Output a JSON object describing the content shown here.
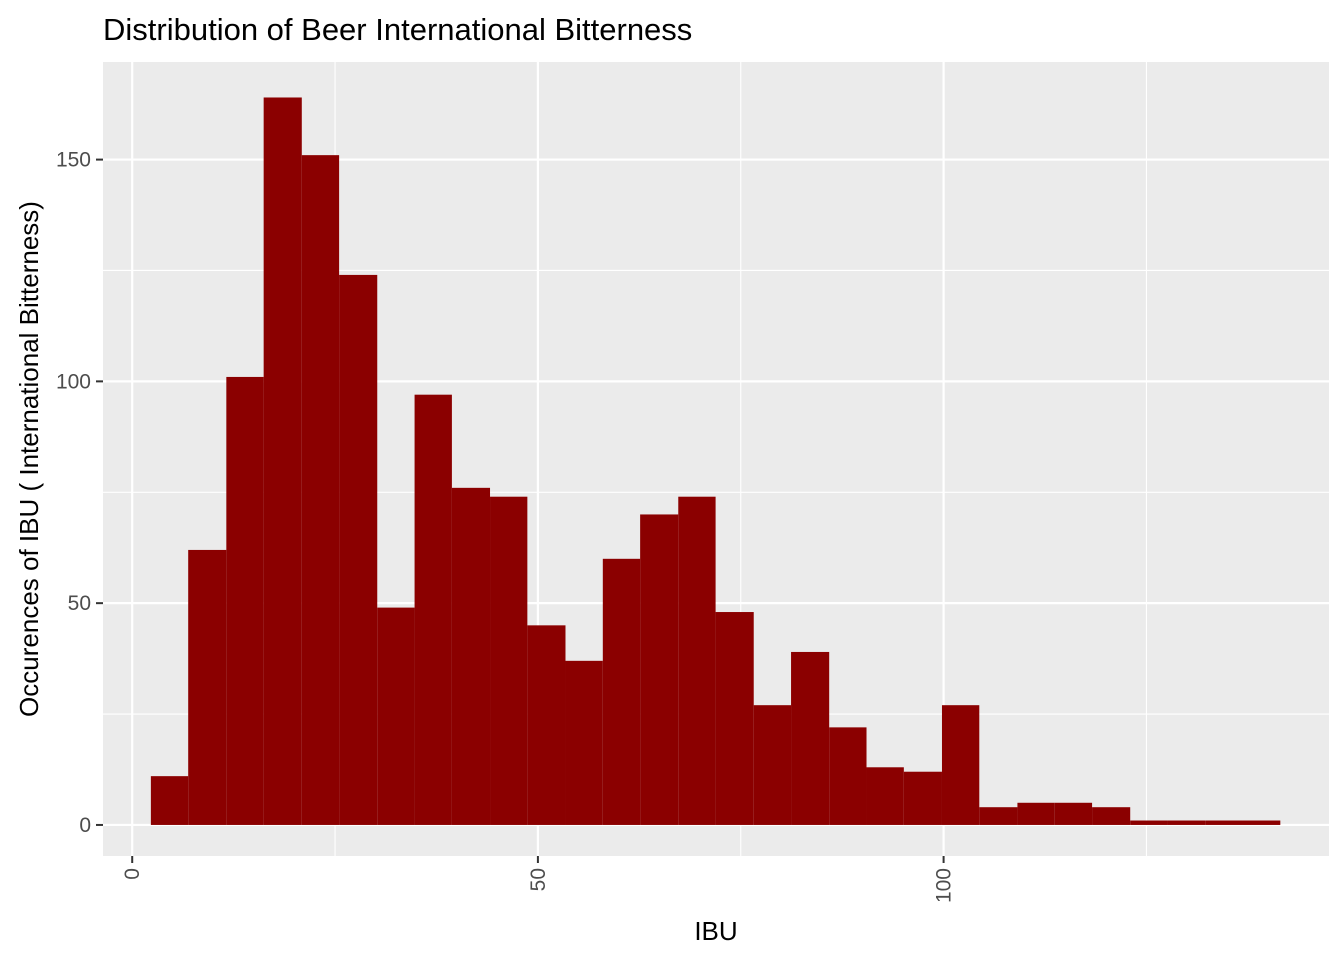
{
  "chart_data": {
    "type": "bar",
    "title": "Distribution of Beer International Bitterness",
    "xlabel": "IBU",
    "ylabel": "Occurences of IBU ( International Bitterness)",
    "xlim": [
      -3.6,
      147.5
    ],
    "ylim": [
      -7,
      172
    ],
    "x_ticks": [
      0,
      50,
      100
    ],
    "y_ticks": [
      0,
      50,
      100,
      150
    ],
    "grid": true,
    "legend": "none",
    "colors": {
      "bar_fill": "#8B0000",
      "panel_background": "#EBEBEB",
      "grid_line": "#FFFFFF",
      "tick_mark": "#333333",
      "tick_text": "#4D4D4D"
    },
    "bins": [
      {
        "x0": 2.3,
        "x1": 6.9,
        "count": 11
      },
      {
        "x0": 6.9,
        "x1": 11.6,
        "count": 62
      },
      {
        "x0": 11.6,
        "x1": 16.2,
        "count": 101
      },
      {
        "x0": 16.2,
        "x1": 20.9,
        "count": 164
      },
      {
        "x0": 20.9,
        "x1": 25.5,
        "count": 151
      },
      {
        "x0": 25.5,
        "x1": 30.2,
        "count": 124
      },
      {
        "x0": 30.2,
        "x1": 34.8,
        "count": 49
      },
      {
        "x0": 34.8,
        "x1": 39.4,
        "count": 97
      },
      {
        "x0": 39.4,
        "x1": 44.1,
        "count": 76
      },
      {
        "x0": 44.1,
        "x1": 48.7,
        "count": 74
      },
      {
        "x0": 48.7,
        "x1": 53.4,
        "count": 45
      },
      {
        "x0": 53.4,
        "x1": 58.0,
        "count": 37
      },
      {
        "x0": 58.0,
        "x1": 62.6,
        "count": 60
      },
      {
        "x0": 62.6,
        "x1": 67.3,
        "count": 70
      },
      {
        "x0": 67.3,
        "x1": 71.9,
        "count": 74
      },
      {
        "x0": 71.9,
        "x1": 76.6,
        "count": 48
      },
      {
        "x0": 76.6,
        "x1": 81.2,
        "count": 27
      },
      {
        "x0": 81.2,
        "x1": 85.9,
        "count": 39
      },
      {
        "x0": 85.9,
        "x1": 90.5,
        "count": 22
      },
      {
        "x0": 90.5,
        "x1": 95.1,
        "count": 13
      },
      {
        "x0": 95.1,
        "x1": 99.8,
        "count": 12
      },
      {
        "x0": 99.8,
        "x1": 104.4,
        "count": 27
      },
      {
        "x0": 104.4,
        "x1": 109.1,
        "count": 4
      },
      {
        "x0": 109.1,
        "x1": 113.7,
        "count": 5
      },
      {
        "x0": 113.7,
        "x1": 118.3,
        "count": 5
      },
      {
        "x0": 118.3,
        "x1": 123.0,
        "count": 4
      },
      {
        "x0": 123.0,
        "x1": 127.6,
        "count": 1
      },
      {
        "x0": 127.6,
        "x1": 132.3,
        "count": 1
      },
      {
        "x0": 132.3,
        "x1": 136.9,
        "count": 1
      },
      {
        "x0": 136.9,
        "x1": 141.5,
        "count": 1
      }
    ]
  }
}
